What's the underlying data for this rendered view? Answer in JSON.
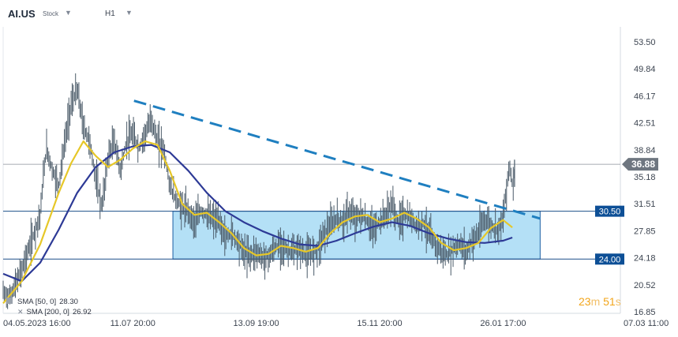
{
  "header": {
    "symbol": "AI.US",
    "type": "Stock",
    "timeframe": "H1"
  },
  "timer": {
    "minutes": "23",
    "m": "m",
    "seconds": "51",
    "s": "s"
  },
  "legend": [
    {
      "label": "SMA [50, 0]",
      "value": "28.30",
      "color": "#e6c728"
    },
    {
      "label": "SMA [200, 0]",
      "value": "26.92",
      "color": "#2d3a96"
    }
  ],
  "colors": {
    "candle": "#4a5a68",
    "sma50": "#e6c728",
    "sma200": "#2d3a96",
    "trendline": "#1f7fc0",
    "zone_fill": "#a7daf5",
    "zone_border": "#1d5ea3",
    "level_line": "#1d4f8a",
    "price_badge": "#6e7680",
    "level_badge": "#0d4f96"
  },
  "chart_data": {
    "type": "line",
    "title": "AI.US",
    "ylim": [
      16.85,
      55.5
    ],
    "y_ticks": [
      "53.50",
      "49.84",
      "46.17",
      "42.51",
      "38.84",
      "35.18",
      "31.51",
      "27.85",
      "24.18",
      "20.52",
      "16.85"
    ],
    "x_ticks": [
      "04.05.2023  16:00",
      "11.07  20:00",
      "13.09  19:00",
      "15.11  20:00",
      "26.01  17:00",
      "07.03  11:00"
    ],
    "current_price": {
      "label": "36.88",
      "value": 36.88
    },
    "levels": [
      {
        "label": "30.50",
        "value": 30.5
      },
      {
        "label": "24.00",
        "value": 24.0
      }
    ],
    "price_series_approx": [
      [
        0,
        19.5
      ],
      [
        0.01,
        18.8
      ],
      [
        0.02,
        20.5
      ],
      [
        0.03,
        22.5
      ],
      [
        0.04,
        25
      ],
      [
        0.05,
        27.5
      ],
      [
        0.06,
        30
      ],
      [
        0.065,
        35
      ],
      [
        0.07,
        39
      ],
      [
        0.08,
        36
      ],
      [
        0.09,
        34
      ],
      [
        0.095,
        37
      ],
      [
        0.1,
        40
      ],
      [
        0.11,
        45
      ],
      [
        0.12,
        47
      ],
      [
        0.13,
        42
      ],
      [
        0.14,
        40
      ],
      [
        0.15,
        35
      ],
      [
        0.16,
        31
      ],
      [
        0.17,
        38
      ],
      [
        0.18,
        40
      ],
      [
        0.19,
        36
      ],
      [
        0.2,
        40
      ],
      [
        0.21,
        41
      ],
      [
        0.22,
        39
      ],
      [
        0.23,
        41
      ],
      [
        0.24,
        43
      ],
      [
        0.25,
        40
      ],
      [
        0.26,
        39
      ],
      [
        0.27,
        34
      ],
      [
        0.28,
        32
      ],
      [
        0.29,
        31
      ],
      [
        0.3,
        30.5
      ],
      [
        0.31,
        29
      ],
      [
        0.32,
        30.5
      ],
      [
        0.33,
        30
      ],
      [
        0.34,
        29.5
      ],
      [
        0.35,
        29
      ],
      [
        0.36,
        27
      ],
      [
        0.37,
        27.5
      ],
      [
        0.38,
        26.5
      ],
      [
        0.39,
        25
      ],
      [
        0.4,
        24.5
      ],
      [
        0.41,
        25
      ],
      [
        0.42,
        24.2
      ],
      [
        0.43,
        24.3
      ],
      [
        0.44,
        25.5
      ],
      [
        0.45,
        26
      ],
      [
        0.46,
        25.2
      ],
      [
        0.47,
        25
      ],
      [
        0.48,
        25.5
      ],
      [
        0.49,
        24.5
      ],
      [
        0.5,
        24.8
      ],
      [
        0.51,
        25.5
      ],
      [
        0.52,
        27.5
      ],
      [
        0.53,
        28.5
      ],
      [
        0.54,
        29.5
      ],
      [
        0.55,
        29
      ],
      [
        0.56,
        30.5
      ],
      [
        0.57,
        29.5
      ],
      [
        0.58,
        30
      ],
      [
        0.59,
        29
      ],
      [
        0.6,
        28
      ],
      [
        0.61,
        29
      ],
      [
        0.62,
        30
      ],
      [
        0.63,
        31.5
      ],
      [
        0.64,
        29
      ],
      [
        0.65,
        30
      ],
      [
        0.66,
        29.5
      ],
      [
        0.67,
        28.5
      ],
      [
        0.68,
        29
      ],
      [
        0.69,
        27.5
      ],
      [
        0.7,
        26
      ],
      [
        0.71,
        25
      ],
      [
        0.72,
        24.5
      ],
      [
        0.73,
        25.5
      ],
      [
        0.74,
        26
      ],
      [
        0.75,
        25
      ],
      [
        0.76,
        26.5
      ],
      [
        0.77,
        27.5
      ],
      [
        0.78,
        29.5
      ],
      [
        0.79,
        28.5
      ],
      [
        0.8,
        28
      ],
      [
        0.81,
        29.5
      ],
      [
        0.82,
        36.9
      ],
      [
        0.825,
        34
      ],
      [
        0.83,
        36.88
      ]
    ],
    "sma50_approx": [
      [
        0,
        18
      ],
      [
        0.03,
        21
      ],
      [
        0.06,
        26
      ],
      [
        0.09,
        33
      ],
      [
        0.11,
        37
      ],
      [
        0.13,
        40
      ],
      [
        0.15,
        38
      ],
      [
        0.17,
        36.5
      ],
      [
        0.19,
        37.5
      ],
      [
        0.21,
        39
      ],
      [
        0.23,
        40
      ],
      [
        0.25,
        39.5
      ],
      [
        0.27,
        36
      ],
      [
        0.29,
        31.5
      ],
      [
        0.31,
        30
      ],
      [
        0.33,
        30.3
      ],
      [
        0.35,
        29
      ],
      [
        0.37,
        27.5
      ],
      [
        0.39,
        25.5
      ],
      [
        0.41,
        24.5
      ],
      [
        0.43,
        24.7
      ],
      [
        0.45,
        25.8
      ],
      [
        0.47,
        25.5
      ],
      [
        0.49,
        25
      ],
      [
        0.51,
        25.5
      ],
      [
        0.53,
        27.5
      ],
      [
        0.55,
        29
      ],
      [
        0.57,
        29.8
      ],
      [
        0.59,
        30
      ],
      [
        0.61,
        29
      ],
      [
        0.63,
        29.5
      ],
      [
        0.65,
        30.3
      ],
      [
        0.67,
        29.5
      ],
      [
        0.69,
        28.3
      ],
      [
        0.71,
        26.2
      ],
      [
        0.73,
        25.2
      ],
      [
        0.75,
        25.5
      ],
      [
        0.77,
        26.2
      ],
      [
        0.79,
        28.2
      ],
      [
        0.81,
        29.3
      ],
      [
        0.825,
        28.3
      ]
    ],
    "sma200_approx": [
      [
        0,
        22
      ],
      [
        0.03,
        21
      ],
      [
        0.06,
        23.5
      ],
      [
        0.09,
        28
      ],
      [
        0.12,
        33
      ],
      [
        0.15,
        36.5
      ],
      [
        0.18,
        38.5
      ],
      [
        0.21,
        39.3
      ],
      [
        0.24,
        39.5
      ],
      [
        0.27,
        38.5
      ],
      [
        0.3,
        36
      ],
      [
        0.33,
        33
      ],
      [
        0.36,
        30.5
      ],
      [
        0.39,
        29
      ],
      [
        0.42,
        27.8
      ],
      [
        0.45,
        26.8
      ],
      [
        0.48,
        26
      ],
      [
        0.51,
        25.8
      ],
      [
        0.54,
        26.5
      ],
      [
        0.57,
        27.5
      ],
      [
        0.6,
        28.4
      ],
      [
        0.63,
        29
      ],
      [
        0.66,
        28.5
      ],
      [
        0.69,
        27.5
      ],
      [
        0.72,
        26.8
      ],
      [
        0.75,
        26.3
      ],
      [
        0.78,
        26.2
      ],
      [
        0.81,
        26.5
      ],
      [
        0.825,
        26.92
      ]
    ],
    "trendline_approx": [
      [
        0.212,
        45.5
      ],
      [
        0.87,
        29.5
      ]
    ],
    "zone": {
      "top": 30.5,
      "bottom": 24.0,
      "x_start": 0.275,
      "x_end": 0.87
    }
  }
}
